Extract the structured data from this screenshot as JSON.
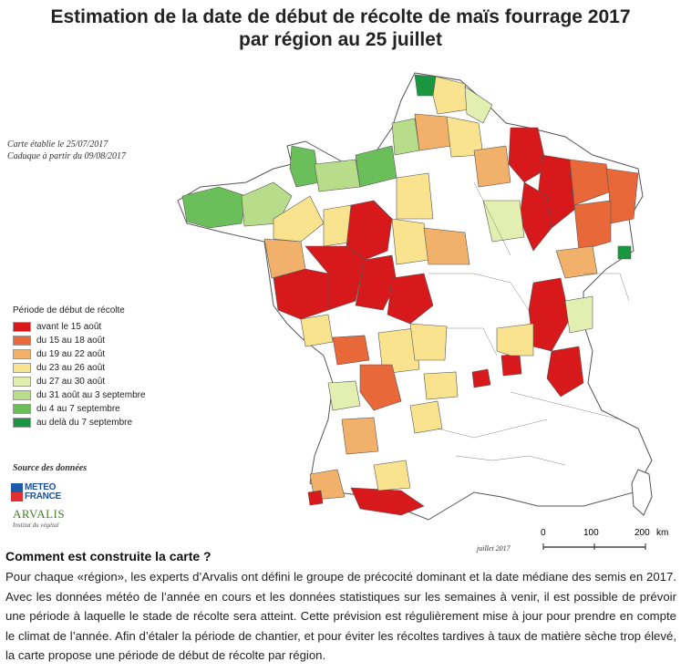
{
  "title": {
    "line1": "Estimation de la date de début de récolte de maïs fourrage 2017",
    "line2": "par région au 25 juillet"
  },
  "map_note": {
    "line1": "Carte établie le 25/07/2017",
    "line2": "Caduque à partir du 09/08/2017"
  },
  "legend": {
    "title": "Période de début de récolte",
    "items": [
      {
        "label": "avant le 15 août",
        "color": "#d7191c"
      },
      {
        "label": "du 15 au 18 août",
        "color": "#e8683a"
      },
      {
        "label": "du 19 au 22 août",
        "color": "#f2b16a"
      },
      {
        "label": "du 23 au 26 août",
        "color": "#f9e38f"
      },
      {
        "label": "du 27 au 30 août",
        "color": "#e3efb0"
      },
      {
        "label": "du 31 août au 3 septembre",
        "color": "#b7dd8a"
      },
      {
        "label": "du 4 au 7 septembre",
        "color": "#6bbf5b"
      },
      {
        "label": "au delà du 7 septembre",
        "color": "#1a9641"
      }
    ]
  },
  "sources": {
    "title": "Source des données",
    "meteo_line1": "METEO",
    "meteo_line2": "FRANCE",
    "arvalis_name": "ARVALIS",
    "arvalis_tagline": "Institut du végétal"
  },
  "scale_bar": {
    "labels": [
      "0",
      "100",
      "200"
    ],
    "unit": "km"
  },
  "map_date": "juillet 2017",
  "explanation": {
    "heading": "Comment est construite la carte ?",
    "body": "Pour chaque «région», les experts d’Arvalis ont défini le groupe de précocité dominant et la date médiane des semis en 2017. Avec les données météo de l’année en cours et les données statistiques sur les semaines à venir, il est possible de prévoir une période à laquelle le stade de récolte sera atteint. Cette prévision est régulièrement mise à jour pour prendre en compte le climat de l’année. Afin d’étaler la période de chantier, et pour éviter les récoltes tardives à taux de matière sèche trop élevé, la carte propose une période de début de récolte par région."
  }
}
